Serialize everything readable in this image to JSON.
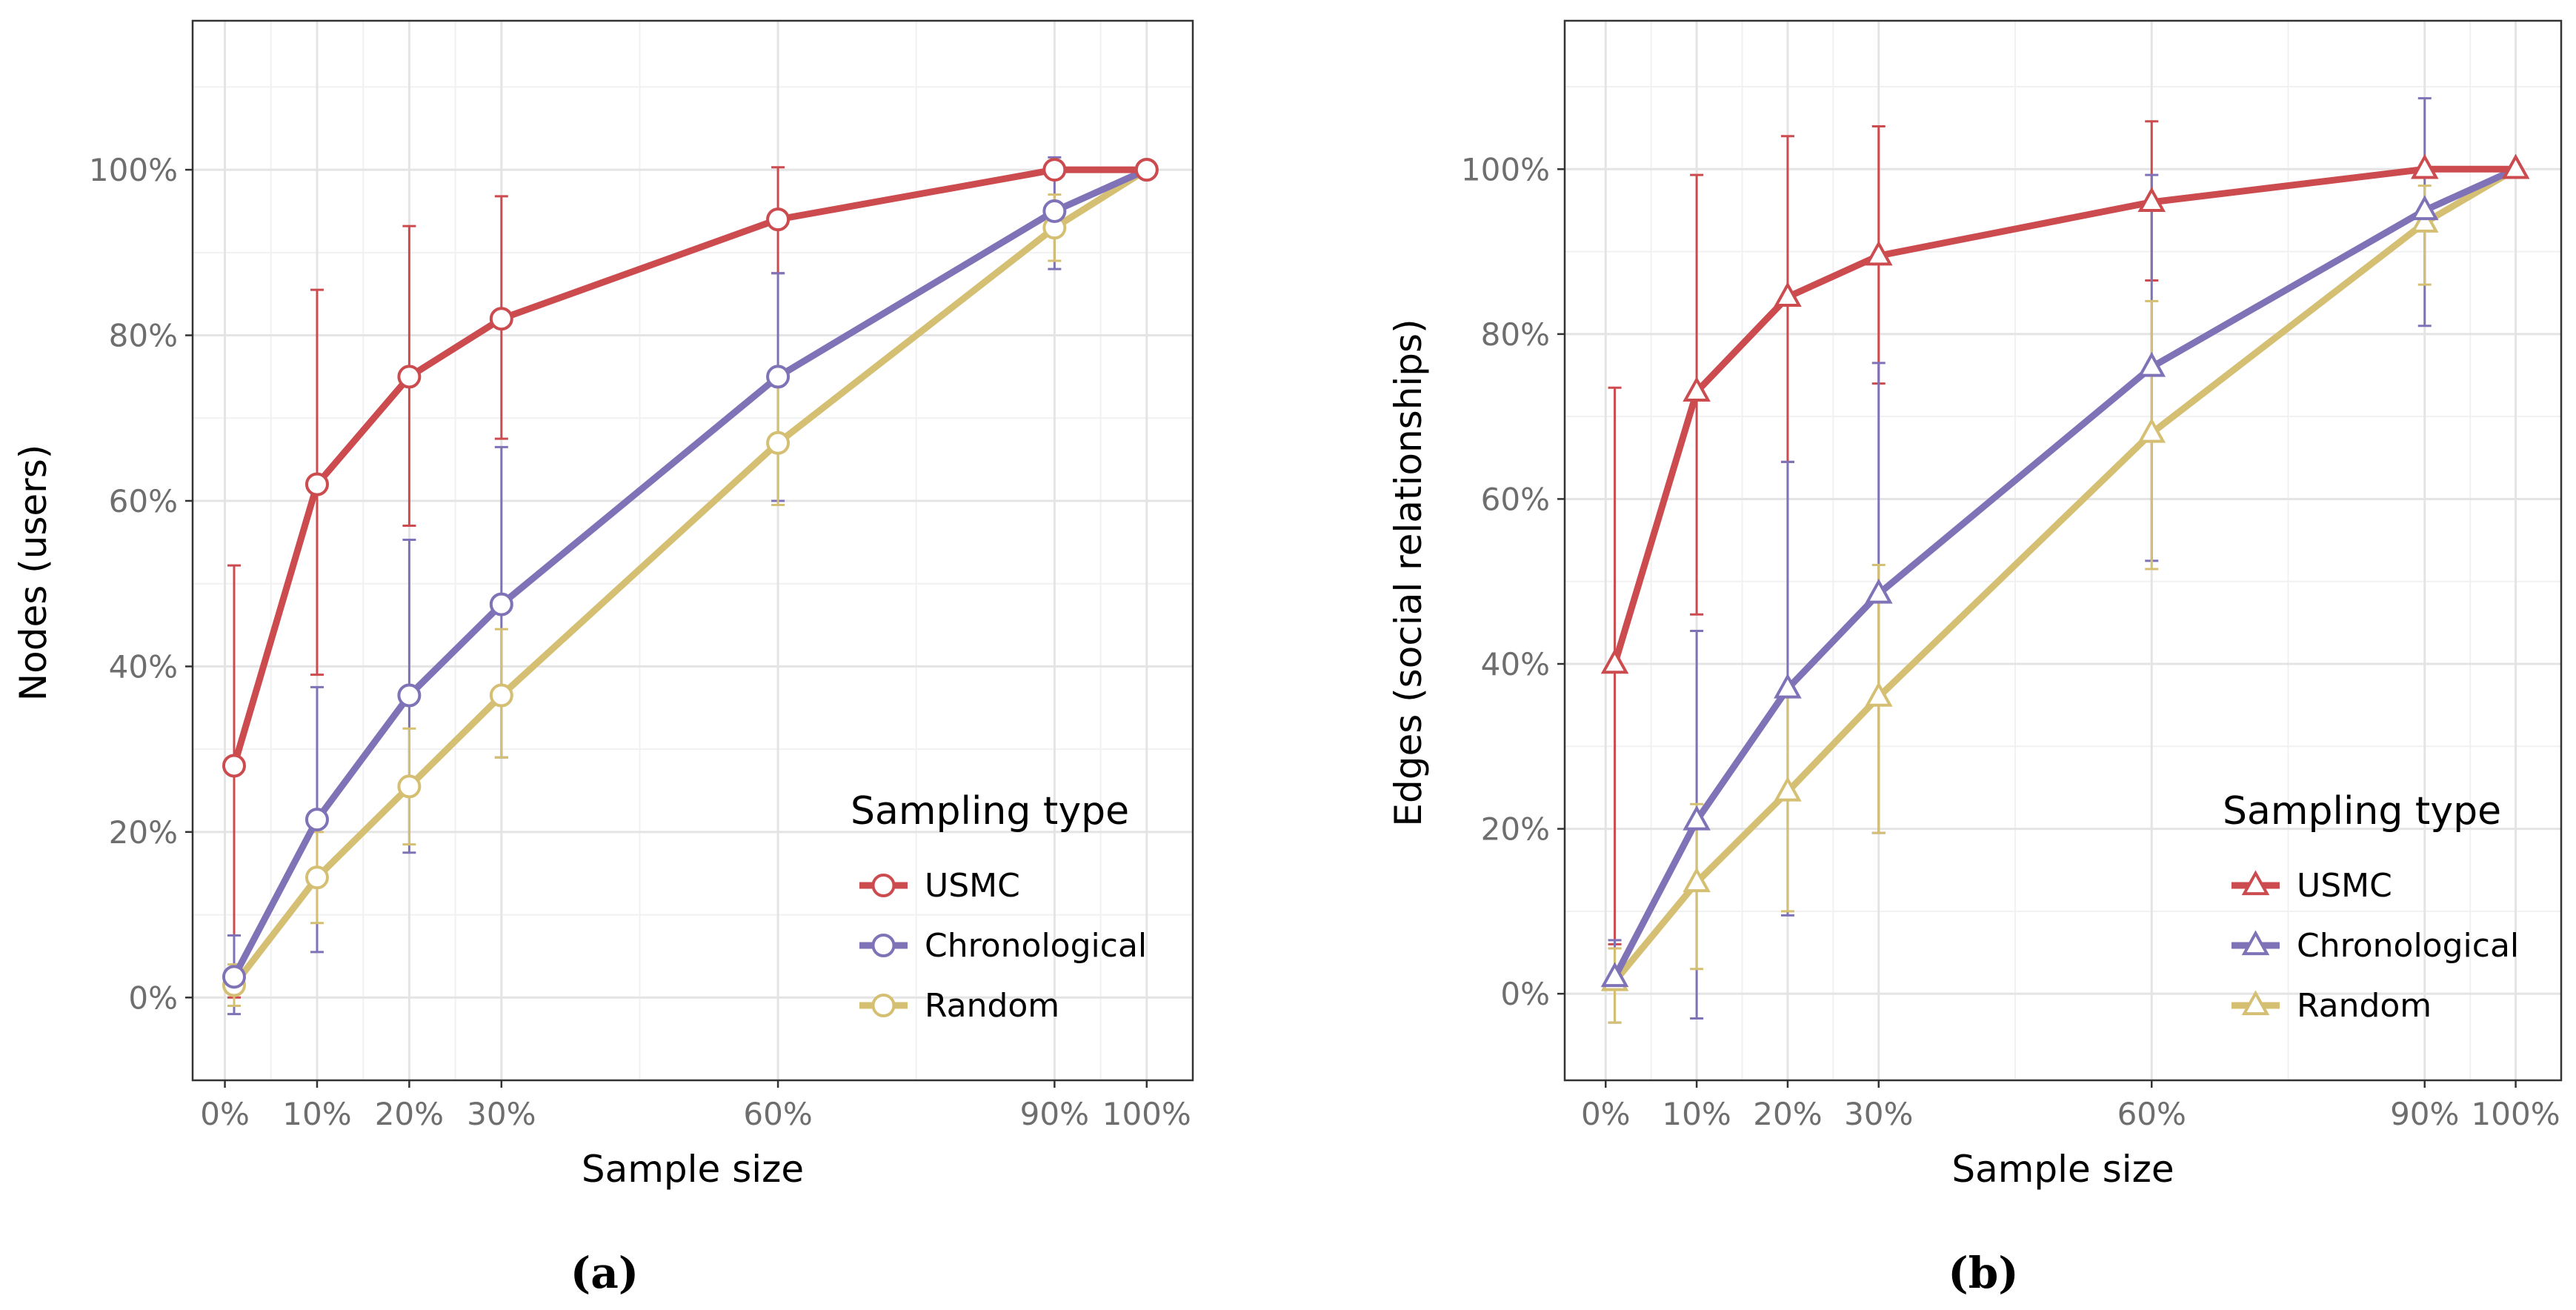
{
  "chart_data": [
    {
      "type": "line",
      "panel": "a",
      "caption": "(a)",
      "xlabel": "Sample size",
      "ylabel": "Nodes (users)",
      "x": [
        1,
        10,
        20,
        30,
        60,
        90,
        100
      ],
      "x_ticks": [
        0,
        10,
        20,
        30,
        60,
        90,
        100
      ],
      "x_tick_labels": [
        "0%",
        "10%",
        "20%",
        "30%",
        "60%",
        "90%",
        "100%"
      ],
      "xlim": [
        -3.5,
        105
      ],
      "y_ticks": [
        0,
        20,
        40,
        60,
        80,
        100
      ],
      "y_tick_labels": [
        "0%",
        "20%",
        "40%",
        "60%",
        "80%",
        "100%"
      ],
      "ylim": [
        -10,
        118
      ],
      "grid": true,
      "marker": "circle",
      "legend_title": "Sampling type",
      "legend_position": "bottom-right",
      "series": [
        {
          "name": "USMC",
          "color": "#cc4b4f",
          "values": [
            28,
            62,
            75,
            82,
            94,
            100,
            100
          ],
          "err_low": [
            0,
            39,
            57,
            67.5,
            87.5,
            100,
            100
          ],
          "err_high": [
            52.2,
            85.5,
            93.2,
            96.8,
            100.3,
            100,
            100
          ]
        },
        {
          "name": "Chronological",
          "color": "#7f72b6",
          "values": [
            2.5,
            21.5,
            36.5,
            47.5,
            75,
            95,
            100
          ],
          "err_low": [
            -2,
            5.5,
            17.5,
            29,
            60,
            88,
            100
          ],
          "err_high": [
            7.5,
            37.5,
            55.3,
            66.5,
            87.5,
            101.5,
            100
          ]
        },
        {
          "name": "Random",
          "color": "#d4bf72",
          "values": [
            1.5,
            14.5,
            25.5,
            36.5,
            67,
            93,
            100
          ],
          "err_low": [
            -1,
            9,
            18.5,
            29,
            59.5,
            89,
            100
          ],
          "err_high": [
            4,
            20,
            32.5,
            44.5,
            74,
            97,
            100
          ]
        }
      ]
    },
    {
      "type": "line",
      "panel": "b",
      "caption": "(b)",
      "xlabel": "Sample size",
      "ylabel": "Edges (social relationships)",
      "x": [
        1,
        10,
        20,
        30,
        60,
        90,
        100
      ],
      "x_ticks": [
        0,
        10,
        20,
        30,
        60,
        90,
        100
      ],
      "x_tick_labels": [
        "0%",
        "10%",
        "20%",
        "30%",
        "60%",
        "90%",
        "100%"
      ],
      "xlim": [
        -4.5,
        105
      ],
      "y_ticks": [
        0,
        20,
        40,
        60,
        80,
        100
      ],
      "y_tick_labels": [
        "0%",
        "20%",
        "40%",
        "60%",
        "80%",
        "100%"
      ],
      "ylim": [
        -10.5,
        118
      ],
      "grid": true,
      "marker": "triangle",
      "legend_title": "Sampling type",
      "legend_position": "bottom-right",
      "series": [
        {
          "name": "USMC",
          "color": "#cc4b4f",
          "values": [
            40,
            73,
            84.5,
            89.5,
            96,
            100,
            100
          ],
          "err_low": [
            6,
            46,
            64.5,
            74,
            86.5,
            100,
            100
          ],
          "err_high": [
            73.5,
            99.3,
            104,
            105.2,
            105.8,
            100,
            100
          ]
        },
        {
          "name": "Chronological",
          "color": "#7f72b6",
          "values": [
            2,
            21,
            37,
            48.5,
            76,
            95,
            100
          ],
          "err_low": [
            -3.5,
            -3,
            9.5,
            19.5,
            52.5,
            81,
            100
          ],
          "err_high": [
            6.5,
            44,
            64.5,
            76.5,
            99.3,
            108.6,
            100
          ]
        },
        {
          "name": "Random",
          "color": "#d4bf72",
          "values": [
            1.5,
            13.5,
            24.5,
            36,
            68,
            93.5,
            100
          ],
          "err_low": [
            -3.5,
            3,
            10,
            19.5,
            51.5,
            86,
            100
          ],
          "err_high": [
            5.5,
            23,
            36,
            52,
            84,
            98,
            100
          ]
        }
      ]
    }
  ]
}
